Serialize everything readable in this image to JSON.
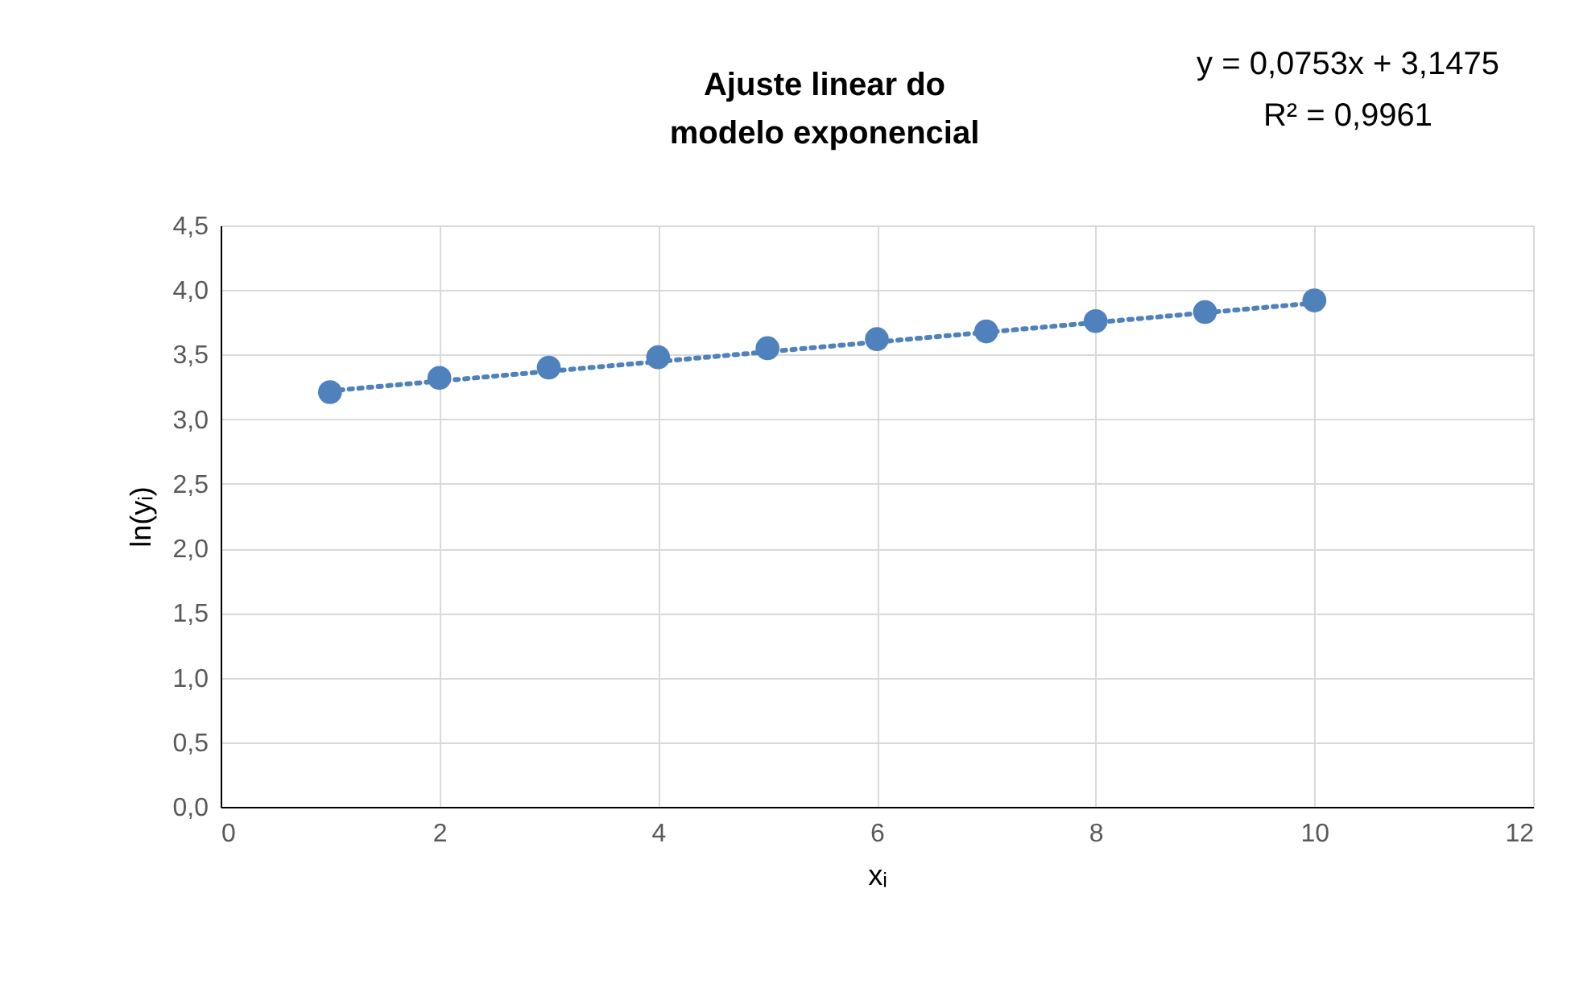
{
  "chart_data": {
    "type": "scatter",
    "title": [
      "Ajuste linear do",
      "modelo exponencial"
    ],
    "xlabel": "xᵢ",
    "ylabel": "ln(yᵢ)",
    "annotations": [
      "y = 0,0753x + 3,1475",
      "R² = 0,9961"
    ],
    "x": [
      1,
      2,
      3,
      4,
      5,
      6,
      7,
      8,
      9,
      10
    ],
    "series": [
      {
        "color": "#4f81bd",
        "marker": "circle",
        "values": [
          3.21,
          3.32,
          3.4,
          3.48,
          3.55,
          3.62,
          3.68,
          3.76,
          3.83,
          3.92
        ]
      },
      {
        "type": "line",
        "color": "#4f81bd",
        "line_style": "dotted",
        "marker": "none",
        "x": [
          1,
          10
        ],
        "values": [
          3.22,
          3.9
        ]
      }
    ],
    "xlim": [
      0,
      12
    ],
    "xticks": [
      {
        "value": 0,
        "label": "0"
      },
      {
        "value": 2,
        "label": "2"
      },
      {
        "value": 4,
        "label": "4"
      },
      {
        "value": 6,
        "label": "6"
      },
      {
        "value": 8,
        "label": "8"
      },
      {
        "value": 10,
        "label": "10"
      },
      {
        "value": 12,
        "label": "12"
      }
    ],
    "ylim": [
      0,
      4.5
    ],
    "yticks": [
      {
        "value": 0,
        "label": "0,0"
      },
      {
        "value": 0.5,
        "label": "0,5"
      },
      {
        "value": 1,
        "label": "1,0"
      },
      {
        "value": 1.5,
        "label": "1,5"
      },
      {
        "value": 2,
        "label": "2,0"
      },
      {
        "value": 2.5,
        "label": "2,5"
      },
      {
        "value": 3,
        "label": "3,0"
      },
      {
        "value": 3.5,
        "label": "3,5"
      },
      {
        "value": 4,
        "label": "4,0"
      },
      {
        "value": 4.5,
        "label": "4,5"
      }
    ],
    "grid": true
  }
}
